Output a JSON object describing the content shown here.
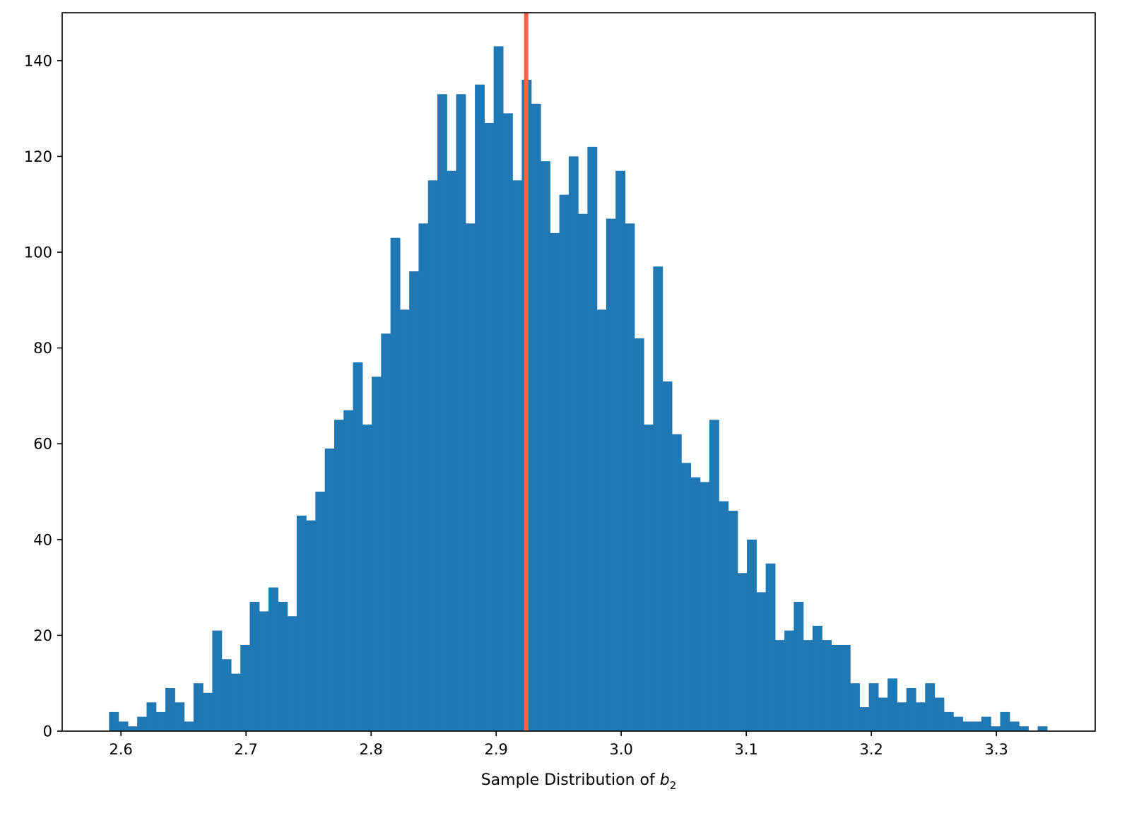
{
  "chart_data": {
    "type": "bar",
    "subtype": "histogram",
    "bin_start": 2.5905,
    "bin_width": 0.0075,
    "values": [
      4,
      2,
      1,
      3,
      6,
      4,
      9,
      6,
      2,
      10,
      8,
      21,
      15,
      12,
      18,
      27,
      25,
      30,
      27,
      24,
      45,
      44,
      50,
      59,
      65,
      67,
      77,
      64,
      74,
      83,
      103,
      88,
      96,
      106,
      115,
      133,
      117,
      133,
      106,
      135,
      127,
      143,
      129,
      115,
      136,
      131,
      119,
      104,
      112,
      120,
      108,
      122,
      88,
      107,
      117,
      106,
      82,
      64,
      97,
      73,
      62,
      56,
      53,
      52,
      65,
      48,
      46,
      33,
      40,
      29,
      35,
      19,
      21,
      27,
      19,
      22,
      19,
      18,
      18,
      10,
      5,
      10,
      7,
      11,
      6,
      9,
      6,
      10,
      7,
      4,
      3,
      2,
      2,
      3,
      1,
      4,
      2,
      1,
      0,
      1
    ],
    "vline": {
      "x": 2.924,
      "color": "#ff6347"
    },
    "bar_color": "#1f77b4",
    "xlim": [
      2.553,
      3.379
    ],
    "ylim": [
      0,
      150
    ],
    "xticks": [
      2.6,
      2.7,
      2.8,
      2.9,
      3.0,
      3.1,
      3.2,
      3.3
    ],
    "xtick_labels": [
      "2.6",
      "2.7",
      "2.8",
      "2.9",
      "3.0",
      "3.1",
      "3.2",
      "3.3"
    ],
    "yticks": [
      0,
      20,
      40,
      60,
      80,
      100,
      120,
      140
    ],
    "ytick_labels": [
      "0",
      "20",
      "40",
      "60",
      "80",
      "100",
      "120",
      "140"
    ],
    "xlabel": {
      "text": "Sample Distribution of ",
      "symbol": "b",
      "subscript": "2"
    },
    "ylabel": "",
    "title": "",
    "grid": false
  }
}
